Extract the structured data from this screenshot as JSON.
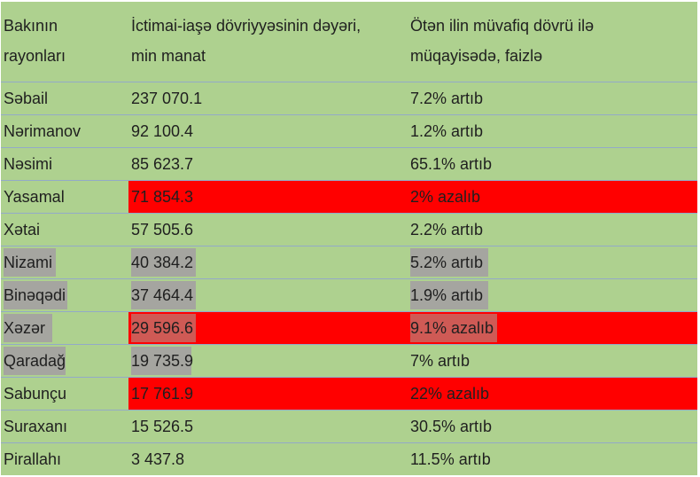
{
  "table": {
    "headers": [
      "Bakının\nrayonları",
      "İctimai-iaşə dövriyyəsinin dəyəri,\nmin manat",
      "Ötən ilin müvafiq dövrü ilə\nmüqayisədə, faizlə"
    ],
    "rows": [
      {
        "district": "Səbail",
        "value": "237 070.1",
        "change": "7.2% artıb"
      },
      {
        "district": "Nərimanov",
        "value": "92 100.4",
        "change": "1.2% artıb"
      },
      {
        "district": "Nəsimi",
        "value": "85 623.7",
        "change": "65.1% artıb"
      },
      {
        "district": "Yasamal",
        "value": "71 854.3",
        "change": "2% azalıb"
      },
      {
        "district": "Xətai",
        "value": "57 505.6",
        "change": "2.2% artıb"
      },
      {
        "district": "Nizami",
        "value": "40 384.2",
        "change": "5.2% artıb"
      },
      {
        "district": "Binəqədi",
        "value": "37 464.4",
        "change": "1.9% artıb"
      },
      {
        "district": "Xəzər",
        "value": "29 596.6",
        "change": "9.1% azalıb"
      },
      {
        "district": "Qaradağ",
        "value": "19 735.9",
        "change": "7% artıb"
      },
      {
        "district": "Sabunçu",
        "value": "17 761.9",
        "change": "22% azalıb"
      },
      {
        "district": "Suraxanı",
        "value": "15 526.5",
        "change": "30.5% artıb"
      },
      {
        "district": "Pirallahı",
        "value": "3 437.8",
        "change": "11.5% artıb"
      }
    ]
  },
  "colors": {
    "table_background": "#aed18f",
    "decrease_highlight": "#ff0000",
    "selection_gray": "#a5a5a0",
    "grid_line": "#93aac8"
  }
}
